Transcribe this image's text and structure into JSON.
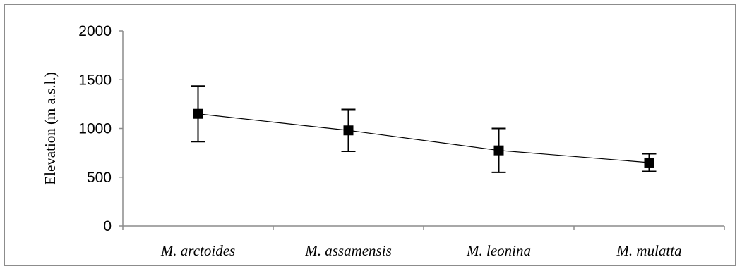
{
  "chart_data": {
    "type": "line",
    "title": "",
    "xlabel": "",
    "ylabel": "Elevation (m a.s.l.)",
    "categories": [
      "M. arctoides",
      "M. assamensis",
      "M. leonina",
      "M. mulatta"
    ],
    "series": [
      {
        "values": [
          1150,
          980,
          775,
          650
        ],
        "error_upper": [
          1435,
          1195,
          1000,
          740
        ],
        "error_lower": [
          865,
          765,
          550,
          560
        ]
      }
    ],
    "ylim": [
      0,
      2000
    ],
    "yticks": [
      "0",
      "500",
      "1000",
      "1500",
      "2000"
    ],
    "grid": false,
    "legend": "none",
    "colors": {
      "line": "#000000",
      "marker": "#000000",
      "axis": "#8c8c8c",
      "frame": "#8c8c8c"
    }
  }
}
